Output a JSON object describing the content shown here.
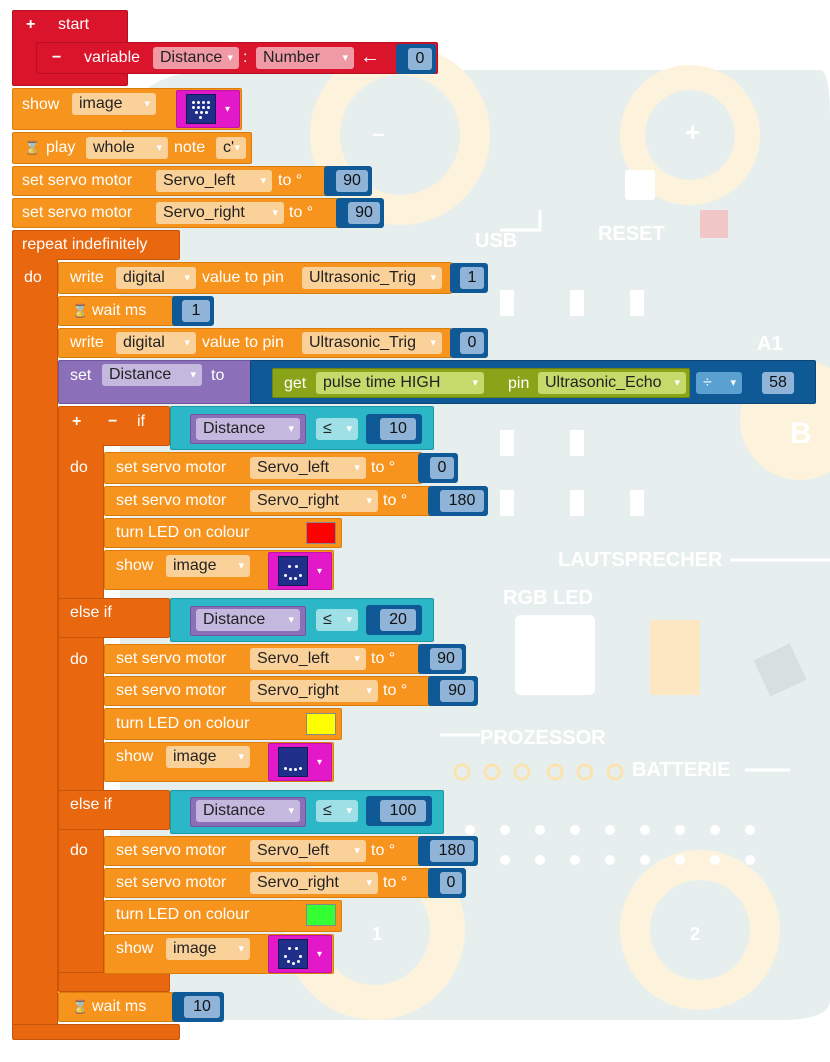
{
  "board": {
    "labels": [
      "USB",
      "RESET",
      "A1",
      "B",
      "LAUTSPRECHER",
      "RGB LED",
      "PROZESSOR",
      "BATTERIE",
      "1",
      "2",
      "–",
      "+"
    ]
  },
  "start": {
    "title": "start",
    "plus": "+",
    "minus": "−",
    "var_kw": "variable",
    "var_name": "Distance",
    "colon": ":",
    "var_type": "Number",
    "arrow": "←",
    "init": "0"
  },
  "blocks": {
    "show": "show",
    "image": "image",
    "play": "play",
    "whole": "whole",
    "note": "note",
    "note_val": "c'",
    "set_servo": "set servo motor",
    "servo_left": "Servo_left",
    "servo_right": "Servo_right",
    "to_deg": "to °",
    "v90": "90",
    "repeat": "repeat indefinitely",
    "do": "do",
    "write": "write",
    "digital": "digital",
    "value_to_pin": "value to pin",
    "trig": "Ultrasonic_Trig",
    "one": "1",
    "zero": "0",
    "wait_ms": "wait ms",
    "set": "set",
    "distance": "Distance",
    "to": "to",
    "get": "get",
    "pulse": "pulse time HIGH",
    "pin": "pin",
    "echo": "Ultrasonic_Echo",
    "div": "÷",
    "v58": "58",
    "if": "if",
    "else_if": "else if",
    "le": "≤",
    "v10": "10",
    "v20": "20",
    "v100": "100",
    "v0": "0",
    "v180": "180",
    "turn_led": "turn LED on  colour",
    "final_wait": "10"
  },
  "colors": {
    "red_led": "#ff0000",
    "yellow_led": "#ffff00",
    "green_led": "#33ff33"
  }
}
